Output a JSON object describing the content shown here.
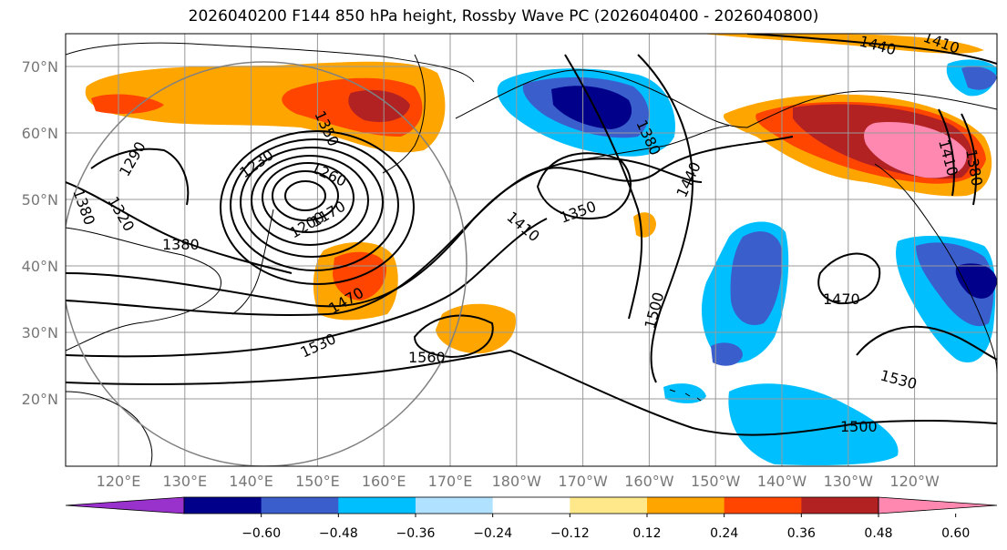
{
  "title": "2026040200 F144 850 hPa height, Rossby Wave PC (2026040400 - 2026040800)",
  "lat_ticks": [
    "20°N",
    "30°N",
    "40°N",
    "50°N",
    "60°N",
    "70°N"
  ],
  "lon_ticks": [
    "120°E",
    "130°E",
    "140°E",
    "150°E",
    "160°E",
    "170°E",
    "180°W",
    "170°W",
    "160°W",
    "150°W",
    "140°W",
    "130°W",
    "120°W"
  ],
  "contour_labels": [
    "1290",
    "1320",
    "1380",
    "1380",
    "1230",
    "1260",
    "1170",
    "1200",
    "1350",
    "1470",
    "1530",
    "1560",
    "1410",
    "1350",
    "1380",
    "1440",
    "1500",
    "1470",
    "1530",
    "1500",
    "1440",
    "1410",
    "1410",
    "1380"
  ],
  "colorbar": {
    "ticks": [
      "−0.60",
      "−0.48",
      "−0.36",
      "−0.24",
      "−0.12",
      "0.12",
      "0.24",
      "0.36",
      "0.48",
      "0.60"
    ],
    "colors": [
      "#9932cc",
      "#00008b",
      "#3a5fcd",
      "#00bfff",
      "#b0e2ff",
      "#ffffff",
      "#ffe88a",
      "#ffa500",
      "#ff4500",
      "#b22222",
      "#ff88b0"
    ]
  }
}
